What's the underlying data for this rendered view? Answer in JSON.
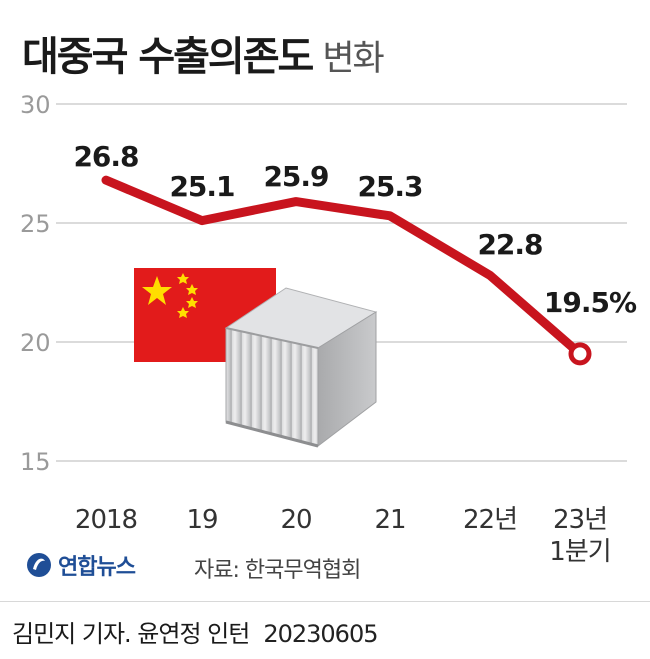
{
  "title": {
    "main": "대중국 수출의존도",
    "sub": "변화"
  },
  "chart_data": {
    "type": "line",
    "title": "대중국 수출의존도 변화",
    "xlabel": "",
    "ylabel": "",
    "categories": [
      "2018",
      "19",
      "20",
      "21",
      "22년",
      "23년 1분기"
    ],
    "series": [
      {
        "values": [
          26.8,
          25.1,
          25.9,
          25.3,
          22.8,
          19.5
        ],
        "labels": [
          "26.8",
          "25.1",
          "25.9",
          "25.3",
          "22.8",
          "19.5%"
        ]
      }
    ],
    "ylim": [
      15,
      30
    ],
    "yticks": [
      30,
      25,
      20,
      15
    ],
    "grid": true,
    "line_color": "#c8141e",
    "last_point_marker": "hollow-circle"
  },
  "illustration": {
    "icons": [
      "china-flag-icon",
      "shipping-container-icon"
    ],
    "flag_color": "#e21b1b",
    "star_color": "#ffde00"
  },
  "footer": {
    "logo_text": "연합뉴스",
    "source": "자료: 한국무역협회",
    "credit": "김민지 기자. 윤연정 인턴",
    "date": "20230605"
  }
}
